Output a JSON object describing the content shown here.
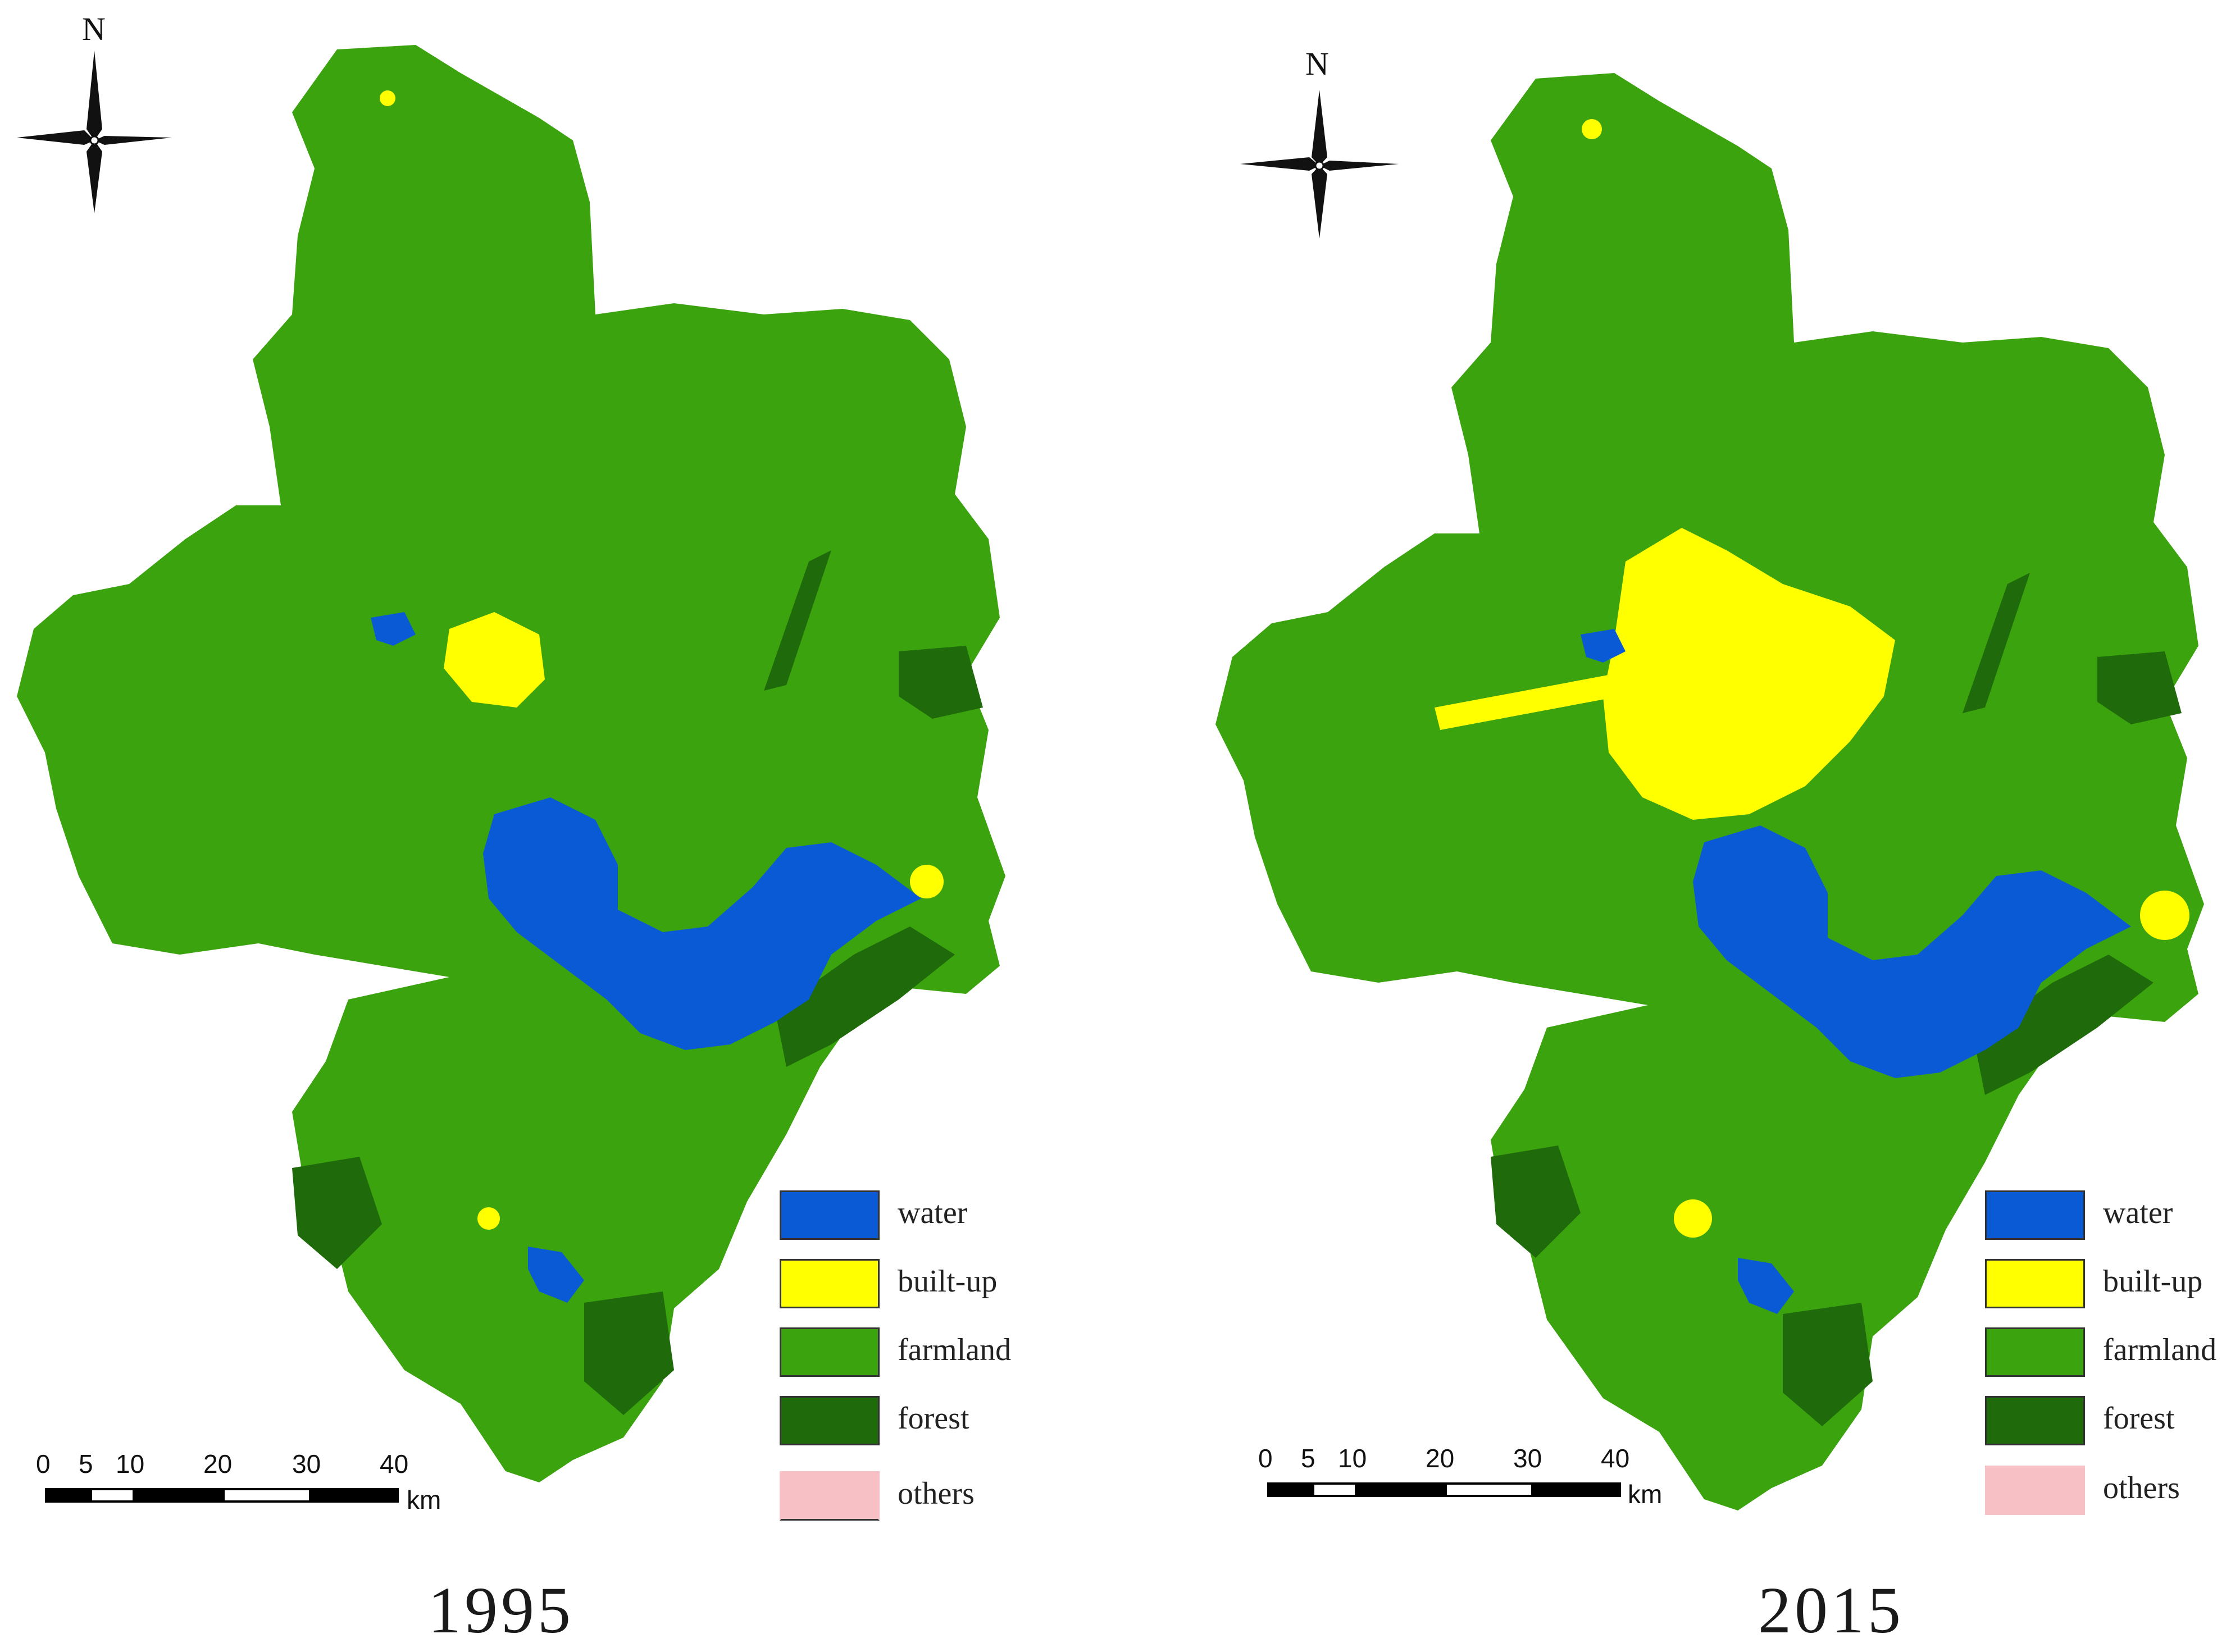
{
  "panels": [
    {
      "year": "1995",
      "north_label": "N",
      "scale": {
        "ticks": [
          "0",
          "5",
          "10",
          "20",
          "30",
          "40"
        ],
        "unit": "km"
      },
      "legend": [
        {
          "label": "water",
          "color": "#0a5ad6"
        },
        {
          "label": "built-up",
          "color": "#ffff00"
        },
        {
          "label": "farmland",
          "color": "#3aa30e"
        },
        {
          "label": "forest",
          "color": "#1f6a0a"
        },
        {
          "label": "others",
          "color": "#f7c0c4"
        }
      ]
    },
    {
      "year": "2015",
      "north_label": "N",
      "scale": {
        "ticks": [
          "0",
          "5",
          "10",
          "20",
          "30",
          "40"
        ],
        "unit": "km"
      },
      "legend": [
        {
          "label": "water",
          "color": "#0a5ad6"
        },
        {
          "label": "built-up",
          "color": "#ffff00"
        },
        {
          "label": "farmland",
          "color": "#3aa30e"
        },
        {
          "label": "forest",
          "color": "#1f6a0a"
        },
        {
          "label": "others",
          "color": "#f7c0c4"
        }
      ]
    }
  ]
}
